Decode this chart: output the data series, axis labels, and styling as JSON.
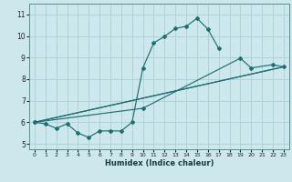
{
  "xlabel": "Humidex (Indice chaleur)",
  "bg_color": "#cde8ed",
  "line_color": "#1e7070",
  "grid_color": "#aacfd5",
  "xlim": [
    -0.5,
    23.5
  ],
  "ylim": [
    4.75,
    11.5
  ],
  "xticks": [
    0,
    1,
    2,
    3,
    4,
    5,
    6,
    7,
    8,
    9,
    10,
    11,
    12,
    13,
    14,
    15,
    16,
    17,
    18,
    19,
    20,
    21,
    22,
    23
  ],
  "yticks": [
    5,
    6,
    7,
    8,
    9,
    10,
    11
  ],
  "line1_x": [
    0,
    1,
    2,
    3,
    4,
    5,
    6,
    7,
    8,
    9,
    10,
    11,
    12,
    13,
    14,
    15,
    16,
    17
  ],
  "line1_y": [
    6.0,
    5.93,
    5.72,
    5.93,
    5.5,
    5.3,
    5.6,
    5.6,
    5.6,
    6.0,
    8.52,
    9.68,
    9.98,
    10.35,
    10.45,
    10.82,
    10.32,
    9.42
  ],
  "line2_x": [
    0,
    10,
    19,
    20,
    22,
    23
  ],
  "line2_y": [
    6.0,
    6.65,
    8.97,
    8.52,
    8.67,
    8.57
  ],
  "line3_x": [
    0,
    23
  ],
  "line3_y": [
    6.0,
    8.57
  ],
  "line4_x": [
    0,
    23
  ],
  "line4_y": [
    6.0,
    8.57
  ]
}
